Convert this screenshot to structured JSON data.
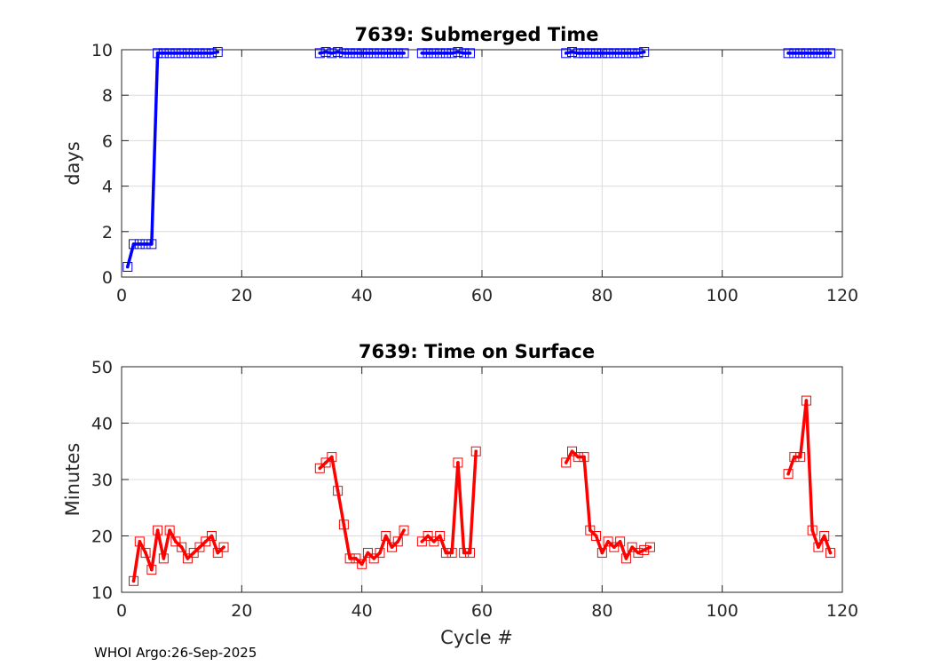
{
  "chart_data": [
    {
      "type": "line",
      "title": "7639: Submerged Time",
      "xlabel": "",
      "ylabel": "days",
      "xlim": [
        0,
        120
      ],
      "ylim": [
        0,
        10
      ],
      "xticks": [
        "0",
        "20",
        "40",
        "60",
        "80",
        "100",
        "120"
      ],
      "yticks": [
        "0",
        "2",
        "4",
        "6",
        "8",
        "10"
      ],
      "grid": true,
      "color": "#0000ff",
      "series": [
        {
          "name": "Submerged Time",
          "x": [
            1,
            2,
            3,
            4,
            5,
            6,
            7,
            8,
            9,
            10,
            11,
            12,
            13,
            14,
            15,
            16,
            33,
            34,
            35,
            36,
            37,
            38,
            39,
            40,
            41,
            42,
            43,
            44,
            45,
            46,
            47,
            50,
            51,
            52,
            53,
            54,
            55,
            56,
            57,
            58,
            74,
            75,
            76,
            77,
            78,
            79,
            80,
            81,
            82,
            83,
            84,
            85,
            86,
            87,
            111,
            112,
            113,
            114,
            115,
            116,
            117,
            118
          ],
          "y": [
            0.45,
            1.45,
            1.45,
            1.45,
            1.45,
            9.85,
            9.85,
            9.85,
            9.85,
            9.85,
            9.85,
            9.85,
            9.85,
            9.85,
            9.85,
            9.9,
            9.85,
            9.9,
            9.85,
            9.9,
            9.85,
            9.85,
            9.85,
            9.85,
            9.85,
            9.85,
            9.85,
            9.85,
            9.85,
            9.85,
            9.85,
            9.85,
            9.85,
            9.85,
            9.85,
            9.85,
            9.85,
            9.9,
            9.85,
            9.85,
            9.85,
            9.9,
            9.85,
            9.85,
            9.85,
            9.85,
            9.85,
            9.85,
            9.85,
            9.85,
            9.85,
            9.85,
            9.85,
            9.9,
            9.85,
            9.85,
            9.85,
            9.85,
            9.85,
            9.85,
            9.85,
            9.85
          ]
        }
      ]
    },
    {
      "type": "line",
      "title": "7639: Time on Surface",
      "xlabel": "Cycle #",
      "ylabel": "Minutes",
      "xlim": [
        0,
        120
      ],
      "ylim": [
        10,
        50
      ],
      "xticks": [
        "0",
        "20",
        "40",
        "60",
        "80",
        "100",
        "120"
      ],
      "yticks": [
        "10",
        "20",
        "30",
        "40",
        "50"
      ],
      "grid": true,
      "color": "#ff0000",
      "series": [
        {
          "name": "Time on Surface",
          "x": [
            2,
            3,
            4,
            5,
            6,
            7,
            8,
            9,
            10,
            11,
            12,
            13,
            14,
            15,
            16,
            17,
            33,
            34,
            35,
            36,
            37,
            38,
            39,
            40,
            41,
            42,
            43,
            44,
            45,
            46,
            47,
            50,
            51,
            52,
            53,
            54,
            55,
            56,
            57,
            58,
            59,
            74,
            75,
            76,
            77,
            78,
            79,
            80,
            81,
            82,
            83,
            84,
            85,
            86,
            87,
            88,
            111,
            112,
            113,
            114,
            115,
            116,
            117,
            118
          ],
          "y": [
            12,
            19,
            17,
            14,
            21,
            16,
            21,
            19,
            18,
            16,
            17,
            18,
            19,
            20,
            17,
            18,
            32,
            33,
            34,
            28,
            22,
            16,
            16,
            15,
            17,
            16,
            17,
            20,
            18,
            19,
            21,
            19,
            20,
            19,
            20,
            17,
            17,
            33,
            17,
            17,
            35,
            33,
            35,
            34,
            34,
            21,
            20,
            17,
            19,
            18,
            19,
            16,
            18,
            17,
            17.5,
            18,
            31,
            34,
            34,
            44,
            21,
            18,
            20,
            17
          ]
        }
      ]
    }
  ],
  "footer": "WHOI Argo:26-Sep-2025"
}
